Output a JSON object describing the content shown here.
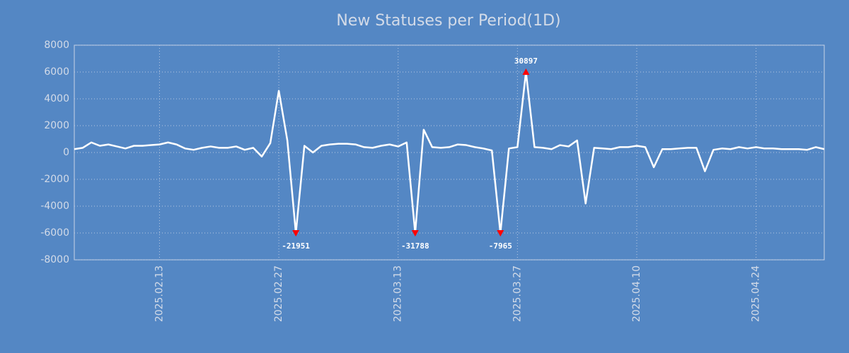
{
  "chart_data": {
    "type": "line",
    "title": "New Statuses per Period(1D)",
    "x": [
      "2025.02.03",
      "2025.02.04",
      "2025.02.05",
      "2025.02.06",
      "2025.02.07",
      "2025.02.08",
      "2025.02.09",
      "2025.02.10",
      "2025.02.11",
      "2025.02.12",
      "2025.02.13",
      "2025.02.14",
      "2025.02.15",
      "2025.02.16",
      "2025.02.17",
      "2025.02.18",
      "2025.02.19",
      "2025.02.20",
      "2025.02.21",
      "2025.02.22",
      "2025.02.23",
      "2025.02.24",
      "2025.02.25",
      "2025.02.26",
      "2025.02.27",
      "2025.02.28",
      "2025.03.01",
      "2025.03.02",
      "2025.03.03",
      "2025.03.04",
      "2025.03.05",
      "2025.03.06",
      "2025.03.07",
      "2025.03.08",
      "2025.03.09",
      "2025.03.10",
      "2025.03.11",
      "2025.03.12",
      "2025.03.13",
      "2025.03.14",
      "2025.03.15",
      "2025.03.16",
      "2025.03.17",
      "2025.03.18",
      "2025.03.19",
      "2025.03.20",
      "2025.03.21",
      "2025.03.22",
      "2025.03.23",
      "2025.03.24",
      "2025.03.25",
      "2025.03.26",
      "2025.03.27",
      "2025.03.28",
      "2025.03.29",
      "2025.03.30",
      "2025.03.31",
      "2025.04.01",
      "2025.04.02",
      "2025.04.03",
      "2025.04.04",
      "2025.04.05",
      "2025.04.06",
      "2025.04.07",
      "2025.04.08",
      "2025.04.09",
      "2025.04.10",
      "2025.04.11",
      "2025.04.12",
      "2025.04.13",
      "2025.04.14",
      "2025.04.15",
      "2025.04.16",
      "2025.04.17",
      "2025.04.18",
      "2025.04.19",
      "2025.04.20",
      "2025.04.21",
      "2025.04.22",
      "2025.04.23",
      "2025.04.24",
      "2025.04.25",
      "2025.04.26",
      "2025.04.27",
      "2025.04.28",
      "2025.04.29",
      "2025.04.30",
      "2025.05.01",
      "2025.05.02"
    ],
    "series": [
      {
        "color": "#ffffff",
        "values": [
          250,
          350,
          750,
          500,
          600,
          450,
          300,
          500,
          500,
          550,
          600,
          750,
          600,
          300,
          200,
          350,
          450,
          350,
          350,
          450,
          200,
          350,
          -300,
          700,
          4600,
          900,
          -6000,
          500,
          0,
          500,
          600,
          650,
          650,
          600,
          400,
          350,
          500,
          600,
          450,
          750,
          -6000,
          1700,
          400,
          350,
          400,
          600,
          550,
          400,
          300,
          150,
          -6000,
          300,
          400,
          6000,
          400,
          350,
          250,
          550,
          450,
          900,
          -3800,
          350,
          300,
          250,
          400,
          400,
          500,
          400,
          -1100,
          250,
          250,
          300,
          350,
          350,
          -1400,
          200,
          300,
          250,
          400,
          300,
          400,
          300,
          300,
          250,
          250,
          250,
          200,
          400,
          250
        ]
      }
    ],
    "annotations": [
      {
        "x": "2025.03.01",
        "text": "-21951"
      },
      {
        "x": "2025.03.15",
        "text": "-31788"
      },
      {
        "x": "2025.03.25",
        "text": "-7965"
      },
      {
        "x": "2025.03.28",
        "text": "30897"
      }
    ],
    "marker_color": "#ff0000",
    "xlim": [
      "2025.02.03",
      "2025.05.02"
    ],
    "xticks": [
      "2025.02.13",
      "2025.02.27",
      "2025.03.13",
      "2025.03.27",
      "2025.04.10",
      "2025.04.24"
    ],
    "ylim": [
      -8000,
      8000
    ],
    "yticks": [
      -8000,
      -6000,
      -4000,
      -2000,
      0,
      2000,
      4000,
      6000,
      8000
    ],
    "grid": true
  }
}
